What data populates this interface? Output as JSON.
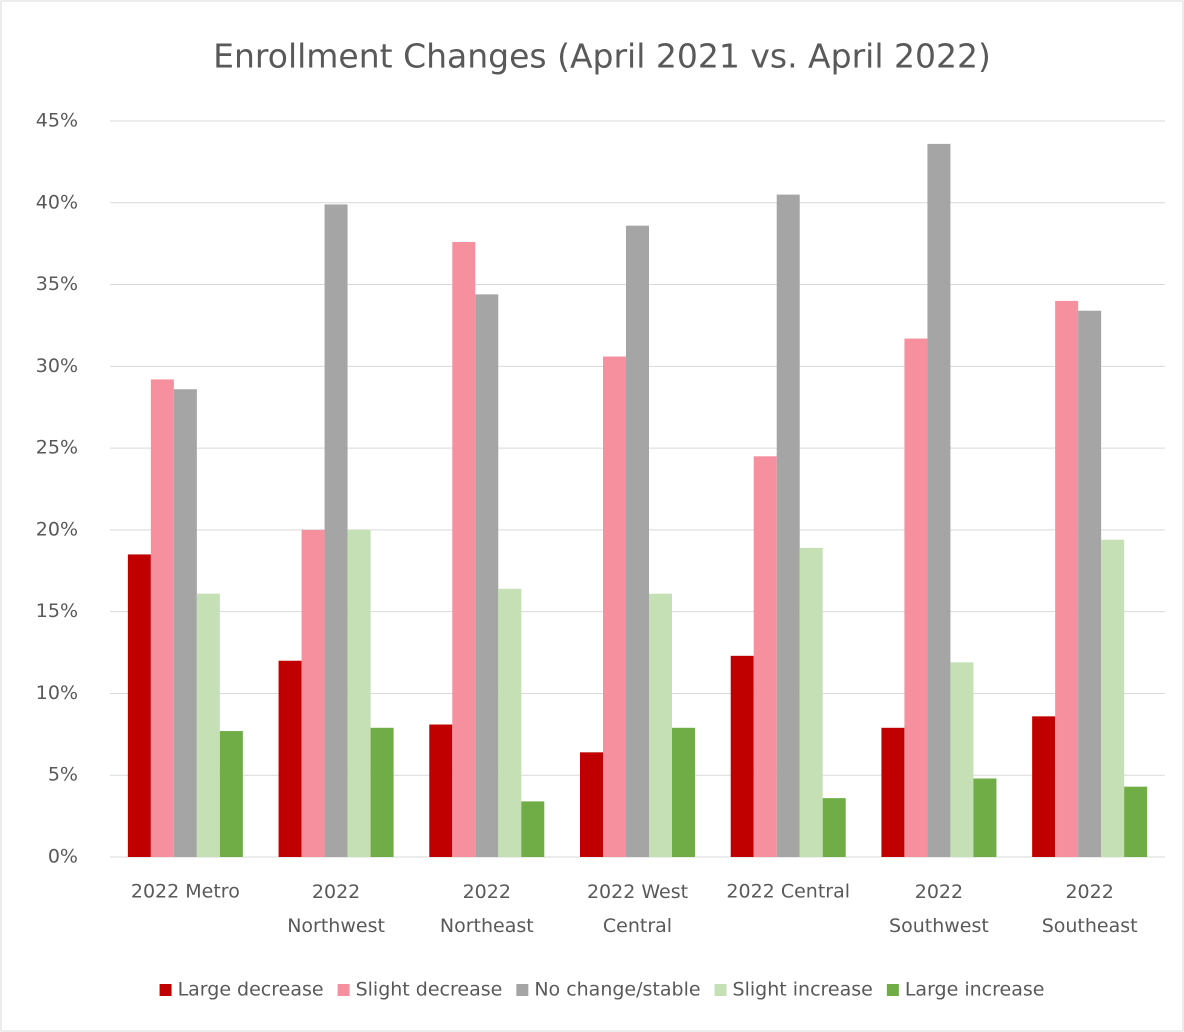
{
  "chart_data": {
    "type": "bar",
    "title": "Enrollment Changes (April 2021 vs. April 2022)",
    "categories": [
      "2022 Metro",
      "2022 Northwest",
      "2022 Northeast",
      "2022 West Central",
      "2022 Central",
      "2022 Southwest",
      "2022 Southeast"
    ],
    "series": [
      {
        "name": "Large decrease",
        "color": "#c00000",
        "values": [
          18.5,
          12.0,
          8.1,
          6.4,
          12.3,
          7.9,
          8.6
        ]
      },
      {
        "name": "Slight decrease",
        "color": "#f7909e",
        "values": [
          29.2,
          20.0,
          37.6,
          30.6,
          24.5,
          31.7,
          34.0
        ]
      },
      {
        "name": "No change/stable",
        "color": "#a5a5a5",
        "values": [
          28.6,
          39.9,
          34.4,
          38.6,
          40.5,
          43.6,
          33.4
        ]
      },
      {
        "name": "Slight increase",
        "color": "#c5e0b4",
        "values": [
          16.1,
          20.0,
          16.4,
          16.1,
          18.9,
          11.9,
          19.4
        ]
      },
      {
        "name": "Large increase",
        "color": "#70ad47",
        "values": [
          7.7,
          7.9,
          3.4,
          7.9,
          3.6,
          4.8,
          4.3
        ]
      }
    ],
    "ylim": [
      0,
      45
    ],
    "yticks": [
      {
        "value": 0,
        "label": "0%"
      },
      {
        "value": 5,
        "label": "5%"
      },
      {
        "value": 10,
        "label": "10%"
      },
      {
        "value": 15,
        "label": "15%"
      },
      {
        "value": 20,
        "label": "20%"
      },
      {
        "value": 25,
        "label": "25%"
      },
      {
        "value": 30,
        "label": "30%"
      },
      {
        "value": 35,
        "label": "35%"
      },
      {
        "value": 40,
        "label": "40%"
      },
      {
        "value": 45,
        "label": "45%"
      }
    ],
    "grid": true,
    "legend": "bottom"
  }
}
